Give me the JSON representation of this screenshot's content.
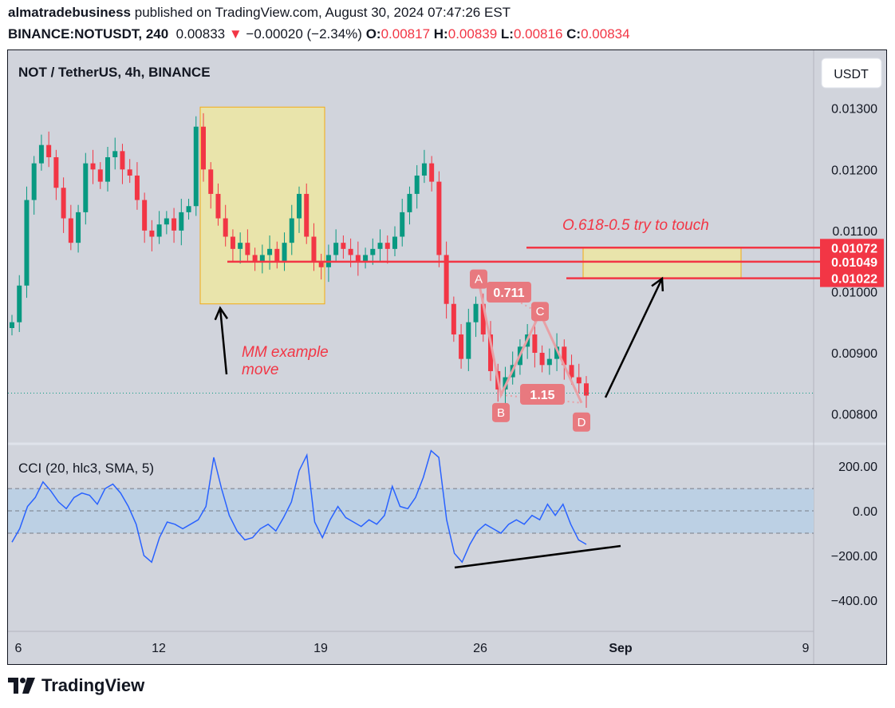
{
  "header": {
    "author": "almatradebusiness",
    "published_text": "published on TradingView.com, August 30, 2024 07:47:26 EST",
    "symbol": "BINANCE:NOTUSDT, 240",
    "last_price": "0.00833",
    "change_arrow": "▼",
    "change": "−0.00020 (−2.34%)",
    "open_label": "O:",
    "open": "0.00817",
    "high_label": "H:",
    "high": "0.00839",
    "low_label": "L:",
    "low": "0.00816",
    "close_label": "C:",
    "close": "0.00834"
  },
  "chart_title": "NOT / TetherUS, 4h, BINANCE",
  "currency_button": "USDT",
  "logo_text": "TradingView",
  "colors": {
    "up": "#089981",
    "down": "#f23645",
    "annotation_red": "#f23645",
    "pattern_fill": "#e8a0a5",
    "box_fill": "#ece6a6",
    "box_border": "#f7a600",
    "cci_line": "#2962ff",
    "cci_band": "#bcd0e4",
    "background": "#d1d4dc"
  },
  "chart_data": [
    {
      "type": "candlestick",
      "title": "NOT / TetherUS, 4h, BINANCE",
      "x_ticks": [
        "6",
        "12",
        "19",
        "26",
        "Sep",
        "9"
      ],
      "y_ticks": [
        "0.01300",
        "0.01200",
        "0.01100",
        "0.01000",
        "0.00900",
        "0.00800"
      ],
      "ylim": [
        0.00755,
        0.01395
      ],
      "price_labels": [
        "0.01072",
        "0.01049",
        "0.01022"
      ],
      "current_price": 0.00834,
      "close_series": [
        0.0095,
        0.0101,
        0.0115,
        0.0121,
        0.0124,
        0.0122,
        0.0117,
        0.0112,
        0.0108,
        0.0113,
        0.0121,
        0.012,
        0.0118,
        0.0122,
        0.0123,
        0.012,
        0.0119,
        0.0115,
        0.011,
        0.0109,
        0.0111,
        0.0112,
        0.011,
        0.0113,
        0.0114,
        0.0127,
        0.012,
        0.0116,
        0.0112,
        0.0109,
        0.0107,
        0.0108,
        0.0106,
        0.0105,
        0.0106,
        0.0107,
        0.0105,
        0.0108,
        0.0112,
        0.0116,
        0.0109,
        0.0105,
        0.0104,
        0.0106,
        0.0108,
        0.0107,
        0.0106,
        0.0105,
        0.0106,
        0.0107,
        0.0108,
        0.0107,
        0.0109,
        0.0113,
        0.0116,
        0.0119,
        0.0121,
        0.0118,
        0.0106,
        0.0098,
        0.0093,
        0.0089,
        0.0095,
        0.0098,
        0.0093,
        0.0087,
        0.0084,
        0.0086,
        0.0088,
        0.0091,
        0.0093,
        0.009,
        0.0088,
        0.0089,
        0.0091,
        0.0088,
        0.0086,
        0.0085,
        0.0083
      ],
      "annotations": [
        "O.618-0.5 try to touch",
        "MM example",
        "move"
      ],
      "pattern": {
        "points": [
          "A",
          "B",
          "C",
          "D"
        ],
        "ratios": [
          "0.711",
          "1.15"
        ]
      }
    },
    {
      "type": "line",
      "title": "CCI (20, hlc3, SMA, 5)",
      "y_ticks": [
        "200.00",
        "0.00",
        "−200.00",
        "−400.00"
      ],
      "ylim": [
        -540,
        290
      ],
      "bands": [
        100,
        0,
        -100
      ],
      "values": [
        -140,
        -80,
        20,
        60,
        130,
        90,
        40,
        10,
        60,
        80,
        70,
        30,
        100,
        120,
        80,
        20,
        -60,
        -200,
        -230,
        -120,
        -50,
        -60,
        -80,
        -60,
        -40,
        20,
        240,
        100,
        -20,
        -90,
        -130,
        -120,
        -80,
        -60,
        -90,
        -30,
        40,
        180,
        250,
        -50,
        -120,
        -40,
        20,
        -30,
        -50,
        -70,
        -40,
        -60,
        -20,
        110,
        20,
        10,
        60,
        150,
        270,
        240,
        -40,
        -190,
        -230,
        -150,
        -90,
        -60,
        -80,
        -100,
        -60,
        -40,
        -60,
        -20,
        -40,
        30,
        -20,
        30,
        -60,
        -130,
        -150
      ]
    }
  ]
}
